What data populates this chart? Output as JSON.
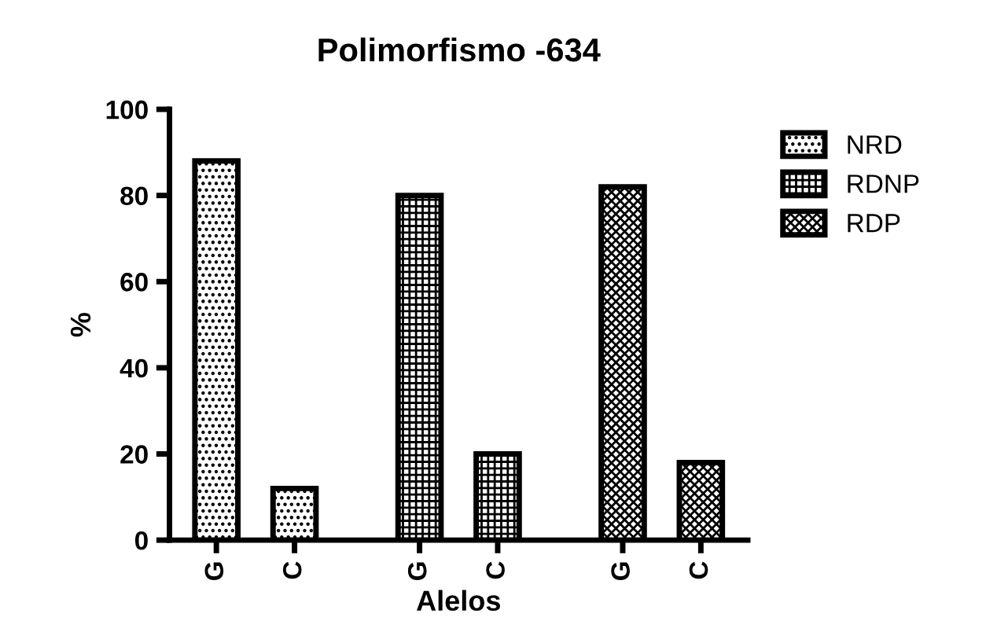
{
  "chart_data": {
    "type": "bar",
    "title": "Polimorfismo -634",
    "xlabel": "Alelos",
    "ylabel": "%",
    "categories": [
      "G",
      "C",
      "G",
      "C",
      "G",
      "C"
    ],
    "series": [
      {
        "name": "NRD",
        "color": "#000000",
        "values": [
          88,
          12,
          null,
          null,
          null,
          null
        ]
      },
      {
        "name": "RDNP",
        "color": "#000000",
        "values": [
          null,
          null,
          80,
          20,
          null,
          null
        ]
      },
      {
        "name": "RDP",
        "color": "#000000",
        "values": [
          null,
          null,
          null,
          null,
          82,
          18
        ]
      }
    ],
    "ylim": [
      0,
      100
    ],
    "yticks": [
      0,
      20,
      40,
      60,
      80,
      100
    ],
    "grid": false,
    "legend": "right"
  }
}
